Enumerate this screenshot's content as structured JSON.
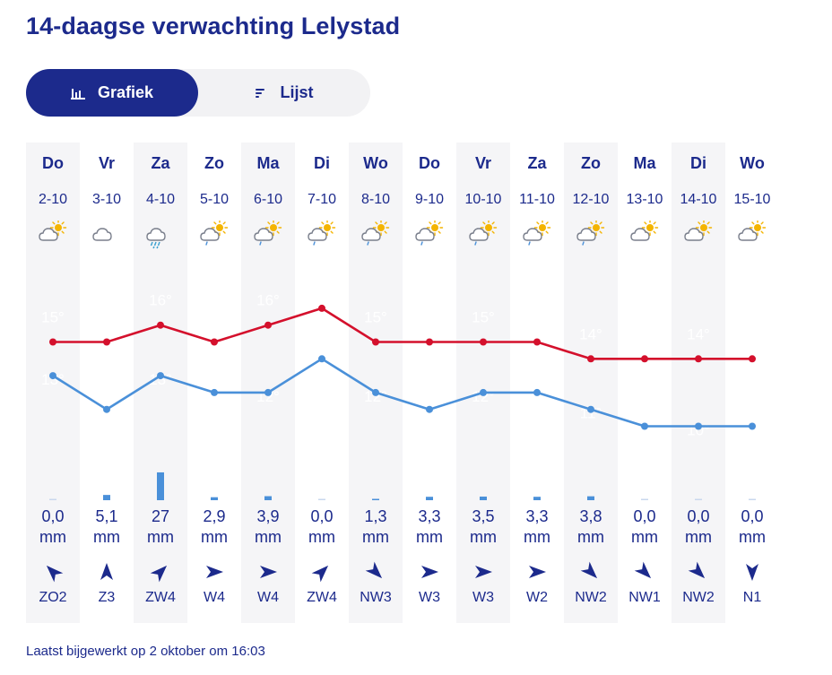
{
  "page": {
    "title": "14-daagse verwachting Lelystad",
    "updated": "Laatst bijgewerkt op 2 oktober om 16:03"
  },
  "toggle": {
    "grafiek_label": "Grafiek",
    "lijst_label": "Lijst",
    "active": "grafiek"
  },
  "colors": {
    "primary": "#1c2a8c",
    "max_line": "#d4102c",
    "min_line": "#4a90d9",
    "precip_bar": "#4a90d9",
    "column_shade": "#f5f5f7"
  },
  "days": [
    {
      "day": "Do",
      "date": "2-10",
      "icon": "sun-cloud-icon",
      "prec": "0,0",
      "unit": "mm",
      "wind_dir": "ZO",
      "wind_label": "ZO2"
    },
    {
      "day": "Vr",
      "date": "3-10",
      "icon": "cloud-icon",
      "prec": "5,1",
      "unit": "mm",
      "wind_dir": "Z",
      "wind_label": "Z3"
    },
    {
      "day": "Za",
      "date": "4-10",
      "icon": "rain-cloud-icon",
      "prec": "27",
      "unit": "mm",
      "wind_dir": "ZW",
      "wind_label": "ZW4"
    },
    {
      "day": "Zo",
      "date": "5-10",
      "icon": "sun-cloud-drizzle-icon",
      "prec": "2,9",
      "unit": "mm",
      "wind_dir": "W",
      "wind_label": "W4"
    },
    {
      "day": "Ma",
      "date": "6-10",
      "icon": "sun-cloud-drizzle-icon",
      "prec": "3,9",
      "unit": "mm",
      "wind_dir": "W",
      "wind_label": "W4"
    },
    {
      "day": "Di",
      "date": "7-10",
      "icon": "sun-cloud-drizzle-icon",
      "prec": "0,0",
      "unit": "mm",
      "wind_dir": "ZW",
      "wind_label": "ZW4"
    },
    {
      "day": "Wo",
      "date": "8-10",
      "icon": "sun-cloud-drizzle-icon",
      "prec": "1,3",
      "unit": "mm",
      "wind_dir": "NW",
      "wind_label": "NW3"
    },
    {
      "day": "Do",
      "date": "9-10",
      "icon": "sun-cloud-drizzle-icon",
      "prec": "3,3",
      "unit": "mm",
      "wind_dir": "W",
      "wind_label": "W3"
    },
    {
      "day": "Vr",
      "date": "10-10",
      "icon": "sun-cloud-drizzle-icon",
      "prec": "3,5",
      "unit": "mm",
      "wind_dir": "W",
      "wind_label": "W3"
    },
    {
      "day": "Za",
      "date": "11-10",
      "icon": "sun-cloud-drizzle-icon",
      "prec": "3,3",
      "unit": "mm",
      "wind_dir": "W",
      "wind_label": "W2"
    },
    {
      "day": "Zo",
      "date": "12-10",
      "icon": "sun-cloud-drizzle-icon",
      "prec": "3,8",
      "unit": "mm",
      "wind_dir": "NW",
      "wind_label": "NW2"
    },
    {
      "day": "Ma",
      "date": "13-10",
      "icon": "sun-cloud-icon",
      "prec": "0,0",
      "unit": "mm",
      "wind_dir": "NW",
      "wind_label": "NW1"
    },
    {
      "day": "Di",
      "date": "14-10",
      "icon": "sun-cloud-icon",
      "prec": "0,0",
      "unit": "mm",
      "wind_dir": "NW",
      "wind_label": "NW2"
    },
    {
      "day": "Wo",
      "date": "15-10",
      "icon": "sun-cloud-icon",
      "prec": "0,0",
      "unit": "mm",
      "wind_dir": "N",
      "wind_label": "N1"
    }
  ],
  "chart_data": {
    "type": "line",
    "categories": [
      "2-10",
      "3-10",
      "4-10",
      "5-10",
      "6-10",
      "7-10",
      "8-10",
      "9-10",
      "10-10",
      "11-10",
      "12-10",
      "13-10",
      "14-10",
      "15-10"
    ],
    "series": [
      {
        "values": [
          15,
          15,
          16,
          15,
          16,
          17,
          15,
          15,
          15,
          15,
          14,
          14,
          14,
          14
        ]
      },
      {
        "values": [
          13,
          11,
          13,
          12,
          12,
          14,
          12,
          11,
          12,
          12,
          11,
          10,
          10,
          10
        ]
      }
    ],
    "precipitation_mm": [
      0.0,
      5.1,
      27,
      2.9,
      3.9,
      0.0,
      1.3,
      3.3,
      3.5,
      3.3,
      3.8,
      0.0,
      0.0,
      0.0
    ],
    "faint_labels": [
      {
        "day": 0,
        "text": "15°"
      },
      {
        "day": 2,
        "text": "16°"
      },
      {
        "day": 4,
        "text": "16°"
      },
      {
        "day": 6,
        "text": "15°"
      },
      {
        "day": 8,
        "text": "15°"
      },
      {
        "day": 10,
        "text": "14°"
      },
      {
        "day": 12,
        "text": "14°"
      },
      {
        "day": 0,
        "text": "13°"
      },
      {
        "day": 2,
        "text": "13°"
      },
      {
        "day": 4,
        "text": "12°"
      },
      {
        "day": 6,
        "text": "12°"
      },
      {
        "day": 8,
        "text": "12°"
      },
      {
        "day": 10,
        "text": "11°"
      },
      {
        "day": 12,
        "text": "10°"
      }
    ]
  }
}
